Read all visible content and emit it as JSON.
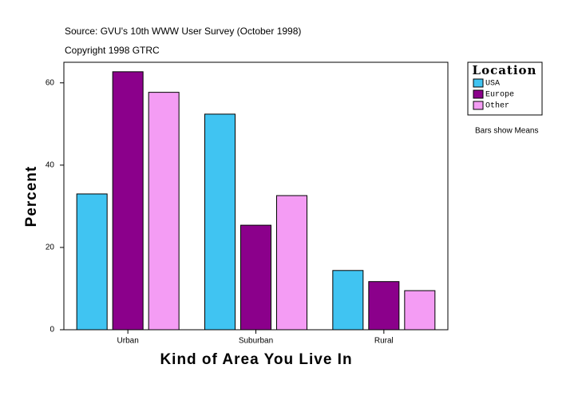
{
  "chart_data": {
    "type": "bar",
    "title": "Source: GVU's 10th WWW User Survey (October 1998)",
    "subtitle": "Copyright 1998 GTRC",
    "x_label": "Kind of Area You Live In",
    "y_label": "Percent",
    "annotation": "Bars show Means",
    "legend_title": "Location",
    "categories": [
      "Urban",
      "Suburban",
      "Rural"
    ],
    "series": [
      {
        "name": "USA",
        "color": "#40c4f2",
        "values": [
          33.0,
          52.4,
          14.4
        ]
      },
      {
        "name": "Europe",
        "color": "#8b008b",
        "values": [
          62.7,
          25.4,
          11.7
        ]
      },
      {
        "name": "Other",
        "color": "#f49cf4",
        "values": [
          57.7,
          32.6,
          9.5
        ]
      }
    ],
    "ylim": [
      0,
      65
    ],
    "yticks": [
      0,
      20,
      40,
      60
    ],
    "grid": false,
    "legend": "right"
  }
}
